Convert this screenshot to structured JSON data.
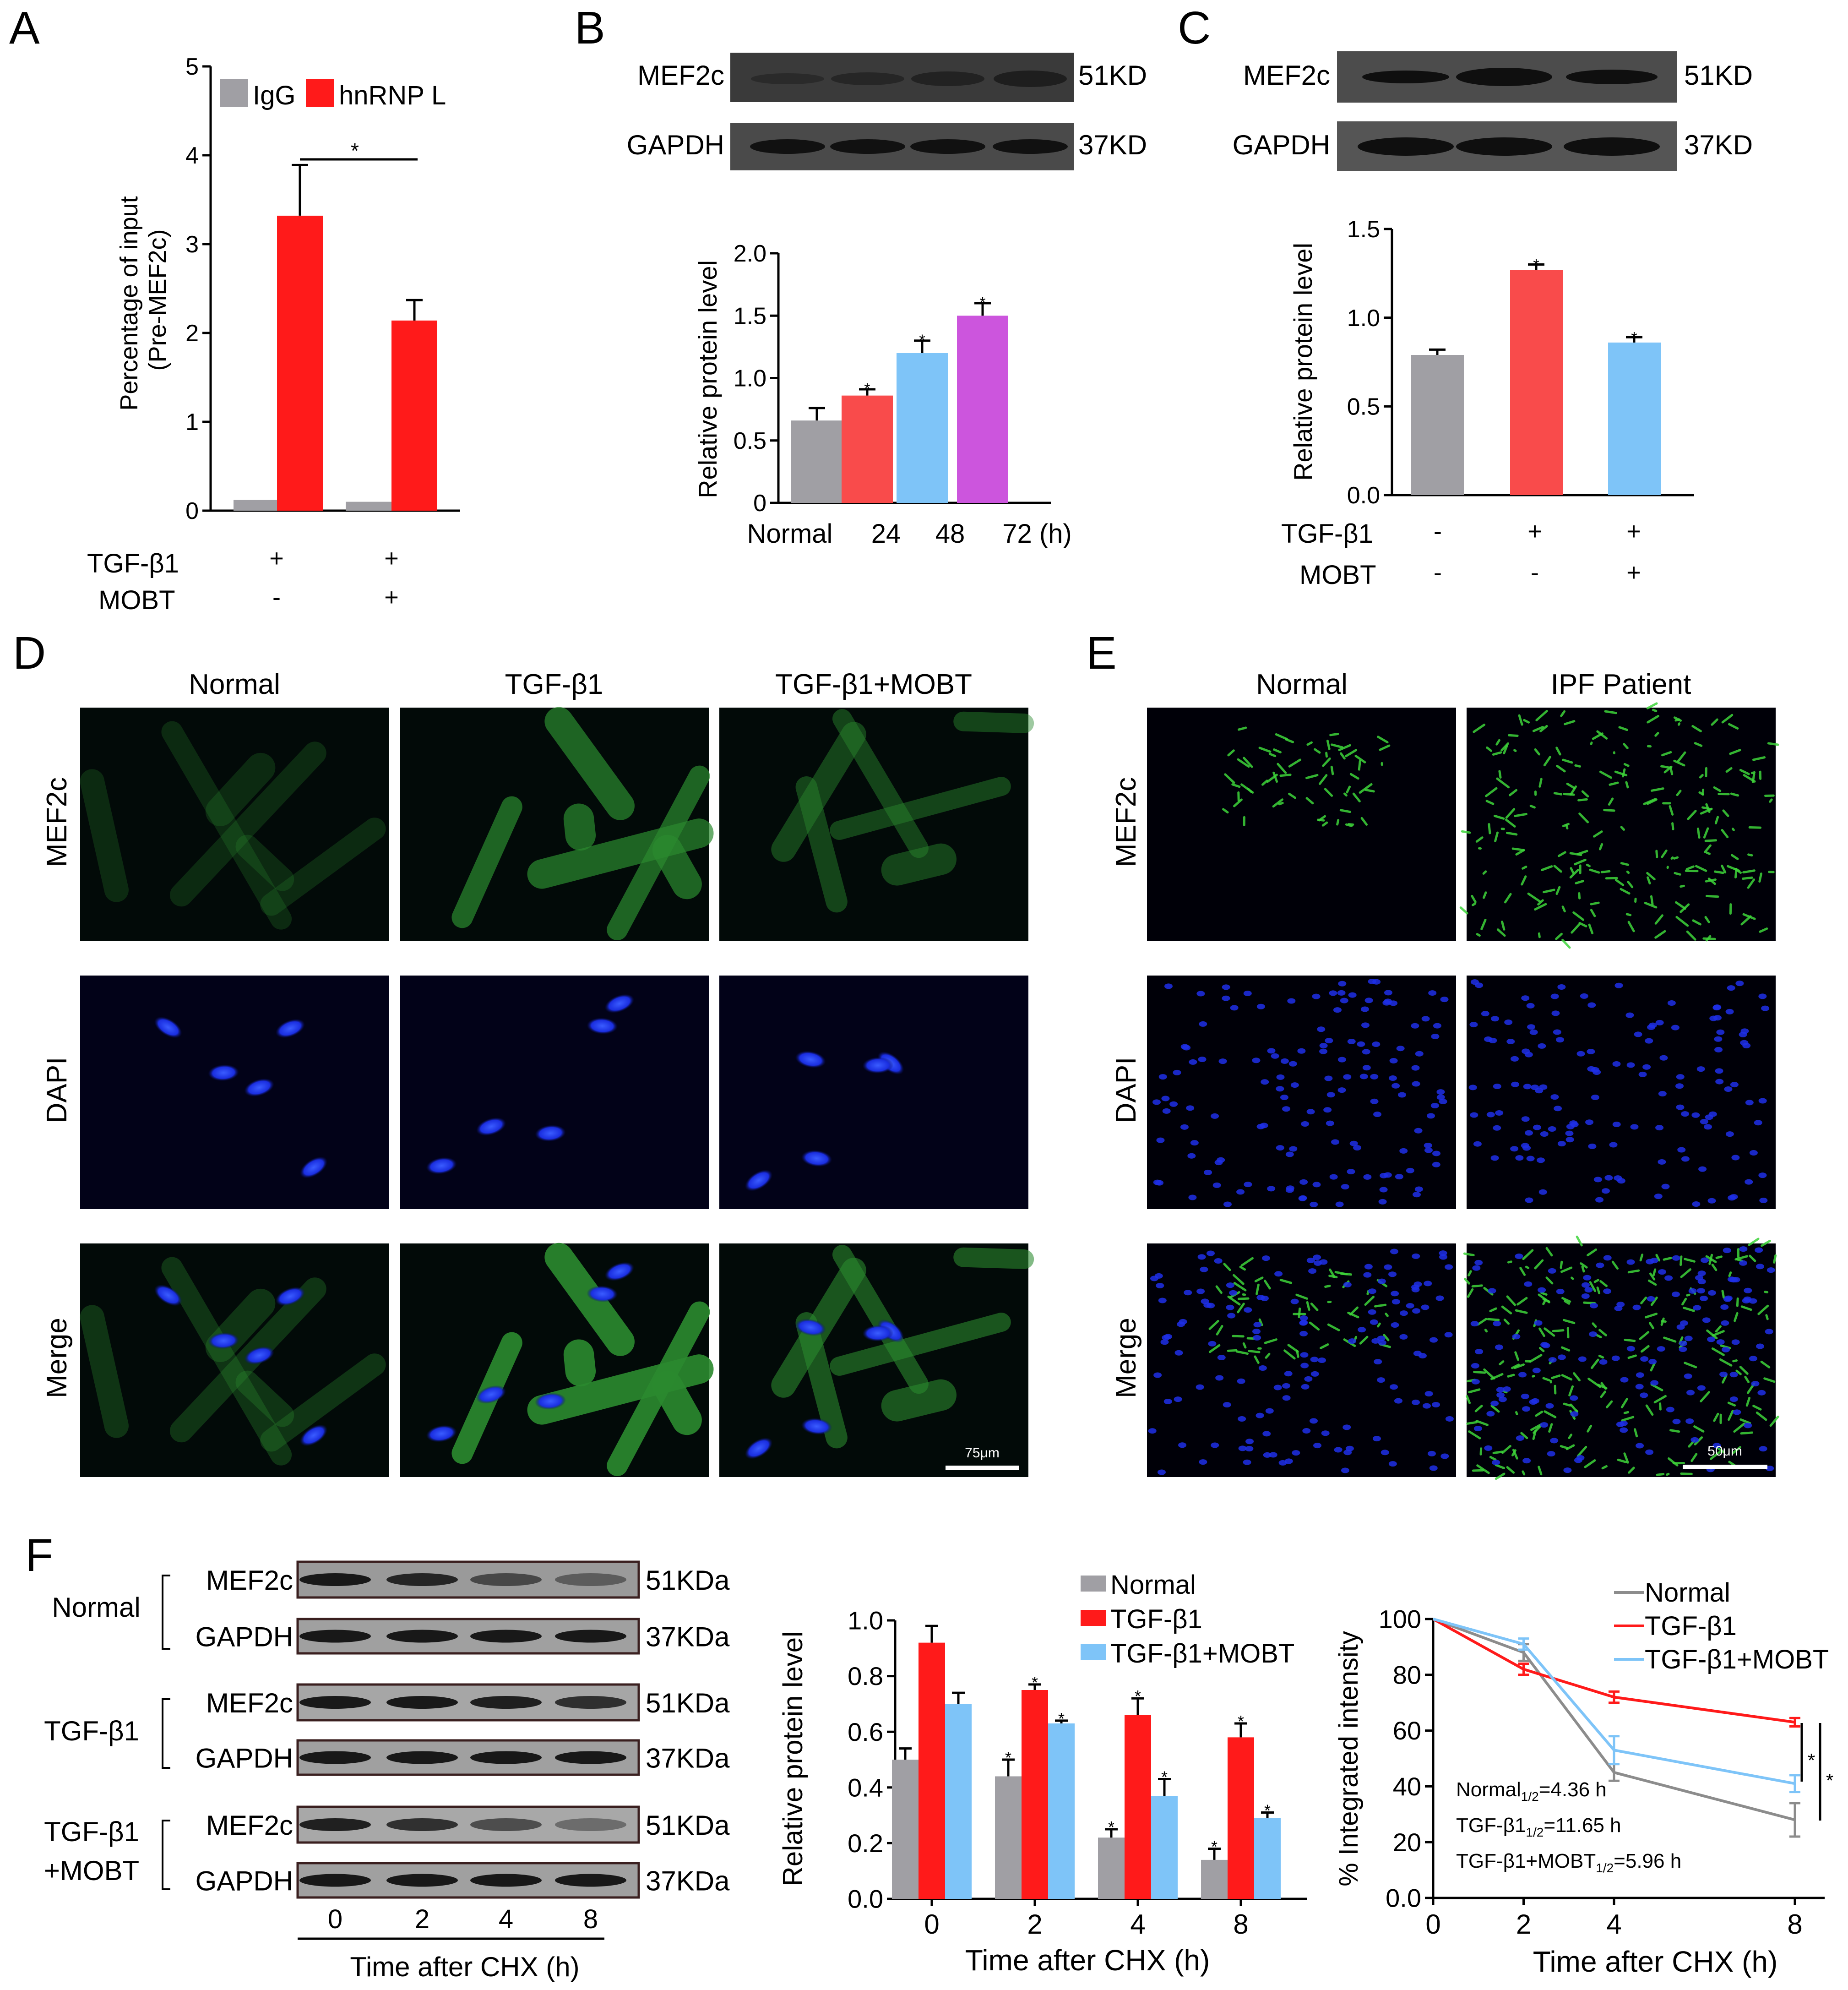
{
  "panels": {
    "A": {
      "letter": "A",
      "legend": [
        "IgG",
        "hnRNP L"
      ],
      "ylabel_line1": "Percentage of input",
      "ylabel_line2": "(Pre-MEF2c)",
      "yticks": [
        "0",
        "1",
        "2",
        "3",
        "4",
        "5"
      ],
      "row_labels": [
        "TGF-β1",
        "MOBT"
      ],
      "row_values": [
        [
          "+",
          "+"
        ],
        [
          "-",
          "+"
        ]
      ],
      "sig": "*"
    },
    "B": {
      "letter": "B",
      "blot_labels": [
        "MEF2c",
        "GAPDH"
      ],
      "blot_sizes": [
        "51KD",
        "37KD"
      ],
      "ylabel": "Relative protein level",
      "yticks": [
        "0",
        "0.5",
        "1.0",
        "1.5",
        "2.0"
      ],
      "xticks": [
        "Normal",
        "24",
        "48",
        "72 (h)"
      ],
      "sig": "*"
    },
    "C": {
      "letter": "C",
      "blot_labels": [
        "MEF2c",
        "GAPDH"
      ],
      "blot_sizes": [
        "51KD",
        "37KD"
      ],
      "ylabel": "Relative protein level",
      "yticks": [
        "0.0",
        "0.5",
        "1.0",
        "1.5"
      ],
      "row_labels": [
        "TGF-β1",
        "MOBT"
      ],
      "row_values": [
        [
          "-",
          "+",
          "+"
        ],
        [
          "-",
          "-",
          "+"
        ]
      ],
      "sig": "*"
    },
    "D": {
      "letter": "D",
      "col_titles": [
        "Normal",
        "TGF-β1",
        "TGF-β1+MOBT"
      ],
      "row_titles": [
        "MEF2c",
        "DAPI",
        "Merge"
      ],
      "scale": "75μm"
    },
    "E": {
      "letter": "E",
      "col_titles": [
        "Normal",
        "IPF Patient"
      ],
      "row_titles": [
        "MEF2c",
        "DAPI",
        "Merge"
      ],
      "scale": "50μm"
    },
    "F": {
      "letter": "F",
      "groups": [
        "Normal",
        "TGF-β1",
        "TGF-β1",
        "+MOBT"
      ],
      "blot_labels": [
        "MEF2c",
        "GAPDH"
      ],
      "blot_sizes": [
        "51KDa",
        "37KDa"
      ],
      "lanes": [
        "0",
        "2",
        "4",
        "8"
      ],
      "lane_axis": "Time after CHX (h)",
      "bar_ylabel": "Relative protein level",
      "bar_yticks": [
        "0.0",
        "0.2",
        "0.4",
        "0.6",
        "0.8",
        "1.0"
      ],
      "bar_xlabel": "Time after CHX (h)",
      "legend": [
        "Normal",
        "TGF-β1",
        "TGF-β1+MOBT"
      ],
      "line_ylabel": "% Integrated intensity",
      "line_yticks": [
        "0.0",
        "20",
        "40",
        "60",
        "80",
        "100"
      ],
      "line_xticks": [
        "0",
        "2",
        "4",
        "8"
      ],
      "line_xlabel": "Time after CHX (h)",
      "half_life": [
        "Normal",
        "=4.36 h",
        "TGF-β1",
        "=11.65 h",
        "TGF-β1+MOBT",
        "=5.96 h"
      ],
      "half_sub": "1/2",
      "sig": "*"
    }
  },
  "colors": {
    "gray": "#a09fa4",
    "red": "#ff1a1a",
    "red2": "#f94b4b",
    "blue": "#7ec4f8",
    "purple": "#cc55dd",
    "line_gray": "#8c8c8c"
  },
  "chart_data": [
    {
      "type": "bar",
      "panel": "A",
      "categories": [
        "TGF-β1 +, MOBT -",
        "TGF-β1 +, MOBT +"
      ],
      "series": [
        {
          "name": "IgG",
          "values": [
            0.12,
            0.1
          ]
        },
        {
          "name": "hnRNP L",
          "values": [
            3.32,
            2.14
          ],
          "errors": [
            0.57,
            0.23
          ]
        }
      ],
      "ylabel": "Percentage of input (Pre-MEF2c)",
      "ylim": [
        0,
        5
      ]
    },
    {
      "type": "bar",
      "panel": "B",
      "categories": [
        "Normal",
        "24",
        "48",
        "72 (h)"
      ],
      "values": [
        0.66,
        0.86,
        1.2,
        1.5
      ],
      "errors": [
        0.1,
        0.05,
        0.1,
        0.1
      ],
      "ylabel": "Relative protein level",
      "ylim": [
        0,
        2.0
      ]
    },
    {
      "type": "bar",
      "panel": "C",
      "categories": [
        "TGF-β1 -, MOBT -",
        "TGF-β1 +, MOBT -",
        "TGF-β1 +, MOBT +"
      ],
      "values": [
        0.79,
        1.27,
        0.86
      ],
      "errors": [
        0.03,
        0.03,
        0.03
      ],
      "ylabel": "Relative protein level",
      "ylim": [
        0,
        1.5
      ]
    },
    {
      "type": "bar",
      "panel": "F",
      "categories": [
        "0",
        "2",
        "4",
        "8"
      ],
      "series": [
        {
          "name": "Normal",
          "values": [
            0.5,
            0.44,
            0.22,
            0.14
          ],
          "errors": [
            0.04,
            0.06,
            0.03,
            0.04
          ]
        },
        {
          "name": "TGF-β1",
          "values": [
            0.92,
            0.75,
            0.66,
            0.58
          ],
          "errors": [
            0.06,
            0.02,
            0.06,
            0.05
          ]
        },
        {
          "name": "TGF-β1+MOBT",
          "values": [
            0.7,
            0.63,
            0.37,
            0.29
          ],
          "errors": [
            0.04,
            0.01,
            0.06,
            0.02
          ]
        }
      ],
      "xlabel": "Time after CHX (h)",
      "ylabel": "Relative protein level",
      "ylim": [
        0,
        1.0
      ]
    },
    {
      "type": "line",
      "panel": "F",
      "x": [
        0,
        2,
        4,
        8
      ],
      "series": [
        {
          "name": "Normal",
          "values": [
            100,
            88,
            45,
            28
          ],
          "errors": [
            0,
            3,
            3,
            6
          ]
        },
        {
          "name": "TGF-β1",
          "values": [
            100,
            82,
            72,
            63
          ],
          "errors": [
            0,
            2,
            2,
            1.5
          ]
        },
        {
          "name": "TGF-β1+MOBT",
          "values": [
            100,
            91,
            53,
            41
          ],
          "errors": [
            0,
            2,
            5,
            3
          ]
        }
      ],
      "xlabel": "Time after CHX (h)",
      "ylabel": "% Integrated intensity",
      "ylim": [
        0,
        100
      ],
      "xlim": [
        0,
        8
      ]
    }
  ]
}
